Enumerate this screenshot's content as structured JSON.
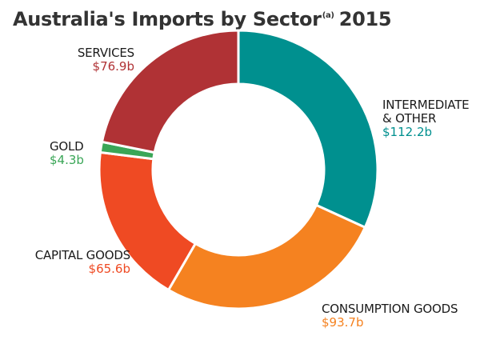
{
  "title_main": "Australia's Imports by Sector",
  "title_sup": "(a)",
  "title_year": "2015",
  "chart_data": {
    "type": "pie",
    "donut": true,
    "title": "Australia's Imports by Sector(a) 2015",
    "unit": "$b",
    "slices": [
      {
        "name": "INTERMEDIATE & OTHER",
        "name_lines": [
          "INTERMEDIATE",
          "& OTHER"
        ],
        "value": 112.2,
        "value_label": "$112.2b",
        "color": "#00908f"
      },
      {
        "name": "CONSUMPTION GOODS",
        "name_lines": [
          "CONSUMPTION GOODS"
        ],
        "value": 93.7,
        "value_label": "$93.7b",
        "color": "#f58220"
      },
      {
        "name": "CAPITAL GOODS",
        "name_lines": [
          "CAPITAL GOODS"
        ],
        "value": 65.6,
        "value_label": "$65.6b",
        "color": "#ef4a23"
      },
      {
        "name": "GOLD",
        "name_lines": [
          "GOLD"
        ],
        "value": 4.3,
        "value_label": "$4.3b",
        "color": "#3aa657"
      },
      {
        "name": "SERVICES",
        "name_lines": [
          "SERVICES"
        ],
        "value": 76.9,
        "value_label": "$76.9b",
        "color": "#b03235"
      }
    ]
  }
}
